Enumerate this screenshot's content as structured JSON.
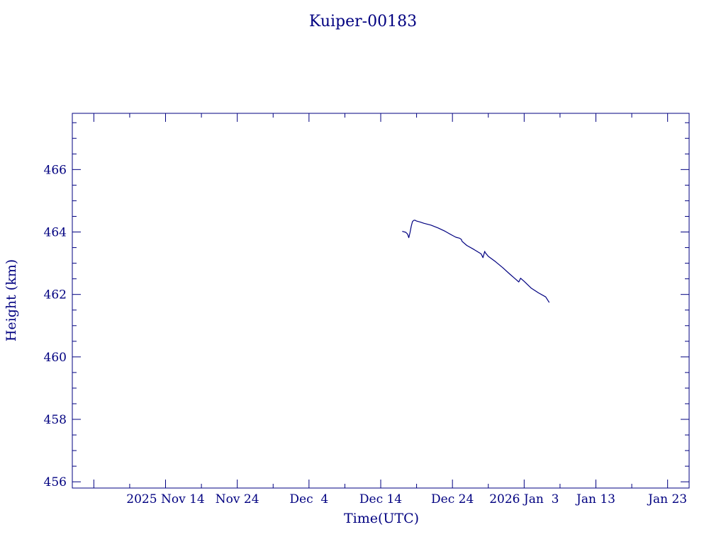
{
  "chart_data": {
    "type": "line",
    "title": "Kuiper-00183",
    "xlabel": "Time(UTC)",
    "ylabel": "Height (km)",
    "xlim": [
      "2025-11-01",
      "2026-01-26"
    ],
    "ylim": [
      455.8,
      467.8
    ],
    "color": "#000080",
    "grid": false,
    "yticks": [
      456,
      458,
      460,
      462,
      464,
      466
    ],
    "xticks": [
      {
        "date": "2025-11-14",
        "label": "2025 Nov 14"
      },
      {
        "date": "2025-11-24",
        "label": "Nov 24"
      },
      {
        "date": "2025-12-04",
        "label": "Dec  4"
      },
      {
        "date": "2025-12-14",
        "label": "Dec 14"
      },
      {
        "date": "2025-12-24",
        "label": "Dec 24"
      },
      {
        "date": "2026-01-03",
        "label": "2026 Jan  3"
      },
      {
        "date": "2026-01-13",
        "label": "Jan 13"
      },
      {
        "date": "2026-01-23",
        "label": "Jan 23"
      }
    ],
    "series": [
      {
        "x": [
          "2025-12-17T00:00",
          "2025-12-17T12:00",
          "2025-12-17T18:00",
          "2025-12-17T22:00",
          "2025-12-18T02:00",
          "2025-12-18T06:00",
          "2025-12-18T10:00",
          "2025-12-18T14:00",
          "2025-12-18T18:00",
          "2025-12-19T00:00",
          "2025-12-19T12:00",
          "2025-12-20T00:00",
          "2025-12-21T00:00",
          "2025-12-22T00:00",
          "2025-12-23T00:00",
          "2025-12-24T00:00",
          "2025-12-24T12:00",
          "2025-12-25T00:00",
          "2025-12-25T06:00",
          "2025-12-25T08:00",
          "2025-12-26T00:00",
          "2025-12-27T00:00",
          "2025-12-28T00:00",
          "2025-12-28T06:00",
          "2025-12-28T12:00",
          "2025-12-28T13:00",
          "2025-12-29T00:00",
          "2025-12-30T00:00",
          "2025-12-31T00:00",
          "2026-01-01T00:00",
          "2026-01-01T12:00",
          "2026-01-02T00:00",
          "2026-01-02T06:00",
          "2026-01-02T12:00",
          "2026-01-03T00:00",
          "2026-01-04T00:00",
          "2026-01-05T00:00",
          "2026-01-06T00:00",
          "2026-01-06T12:00"
        ],
        "values": [
          464.02,
          463.99,
          463.93,
          463.82,
          463.98,
          464.18,
          464.33,
          464.37,
          464.38,
          464.35,
          464.32,
          464.28,
          464.22,
          464.13,
          464.02,
          463.89,
          463.83,
          463.8,
          463.76,
          463.7,
          463.57,
          463.44,
          463.3,
          463.18,
          463.38,
          463.35,
          463.22,
          463.05,
          462.86,
          462.65,
          462.55,
          462.45,
          462.4,
          462.52,
          462.42,
          462.2,
          462.05,
          461.92,
          461.74
        ]
      }
    ]
  }
}
